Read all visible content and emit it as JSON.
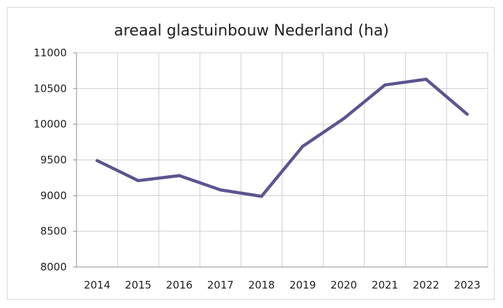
{
  "chart_data": {
    "type": "line",
    "title": "areaal glastuinbouw Nederland (ha)",
    "xlabel": "",
    "ylabel": "",
    "categories": [
      "2014",
      "2015",
      "2016",
      "2017",
      "2018",
      "2019",
      "2020",
      "2021",
      "2022",
      "2023"
    ],
    "series": [
      {
        "values": [
          9490,
          9210,
          9280,
          9080,
          8990,
          9690,
          10080,
          10550,
          10630,
          10140
        ]
      }
    ],
    "ylim": [
      8000,
      11000
    ],
    "yticks": [
      "8000",
      "8500",
      "9000",
      "9500",
      "10000",
      "10500",
      "11000"
    ],
    "grid": true,
    "legend": "none",
    "colors": {
      "line": "#5b5590",
      "grid": "#cfcfcf",
      "axis": "#8c8c8c"
    }
  }
}
